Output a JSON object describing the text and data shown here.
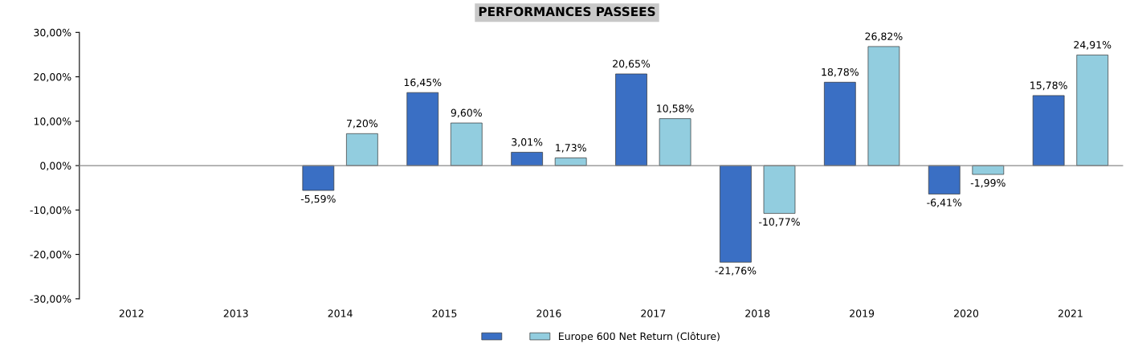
{
  "chart_data": {
    "type": "bar",
    "title": "PERFORMANCES PASSEES",
    "categories": [
      "2012",
      "2013",
      "2014",
      "2015",
      "2016",
      "2017",
      "2018",
      "2019",
      "2020",
      "2021"
    ],
    "series": [
      {
        "color": "#3a6fc4",
        "values": [
          null,
          null,
          -5.59,
          16.45,
          3.01,
          20.65,
          -21.76,
          18.78,
          -6.41,
          15.78
        ],
        "value_labels": [
          null,
          null,
          "-5,59%",
          "16,45%",
          "3,01%",
          "20,65%",
          "-21,76%",
          "18,78%",
          "-6,41%",
          "15,78%"
        ]
      },
      {
        "name": "Europe 600 Net Return (Clôture)",
        "color": "#92cddf",
        "values": [
          null,
          null,
          7.2,
          9.6,
          1.73,
          10.58,
          -10.77,
          26.82,
          -1.99,
          24.91
        ],
        "value_labels": [
          null,
          null,
          "7,20%",
          "9,60%",
          "1,73%",
          "10,58%",
          "-10,77%",
          "26,82%",
          "-1,99%",
          "24,91%"
        ]
      }
    ],
    "ylim": [
      -30,
      30
    ],
    "yticks": [
      {
        "value": -30,
        "label": "-30,00%"
      },
      {
        "value": -20,
        "label": "-20,00%"
      },
      {
        "value": -10,
        "label": "-10,00%"
      },
      {
        "value": 0,
        "label": "0,00%"
      },
      {
        "value": 10,
        "label": "10,00%"
      },
      {
        "value": 20,
        "label": "20,00%"
      },
      {
        "value": 30,
        "label": "30,00%"
      }
    ],
    "legend": "bottom"
  }
}
